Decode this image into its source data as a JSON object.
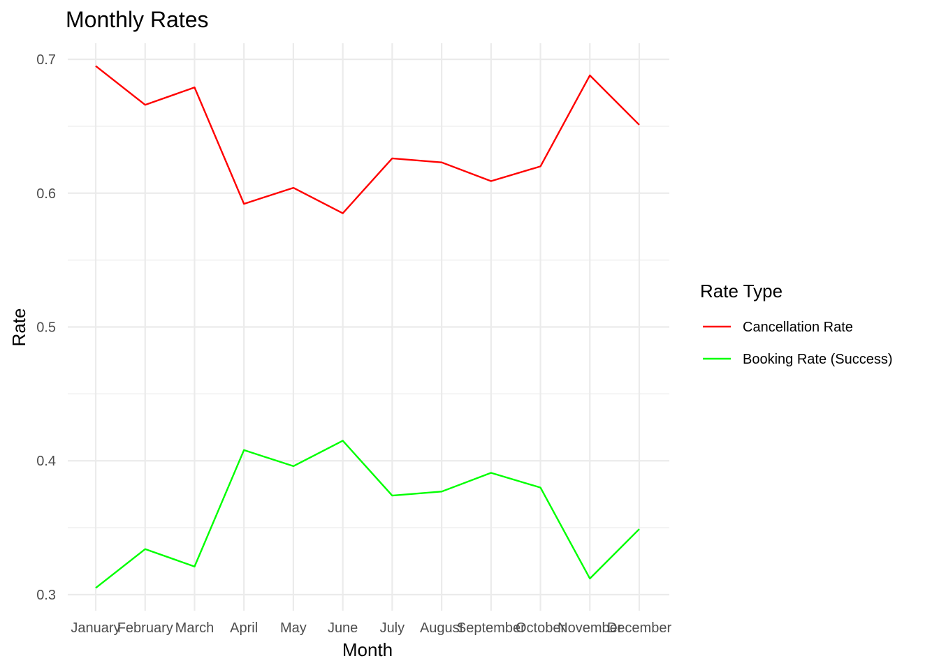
{
  "chart_data": {
    "type": "line",
    "title": "Monthly Rates",
    "xlabel": "Month",
    "ylabel": "Rate",
    "categories": [
      "January",
      "February",
      "March",
      "April",
      "May",
      "June",
      "July",
      "August",
      "September",
      "October",
      "November",
      "December"
    ],
    "ylim": [
      0.288,
      0.712
    ],
    "yticks": [
      0.3,
      0.4,
      0.5,
      0.6,
      0.7
    ],
    "ytick_labels": [
      "0.3",
      "0.4",
      "0.5",
      "0.6",
      "0.7"
    ],
    "grid": true,
    "legend": {
      "title": "Rate Type",
      "placement": "right"
    },
    "series": [
      {
        "name": "Cancellation Rate",
        "color": "#ff0000",
        "values": [
          0.695,
          0.666,
          0.679,
          0.592,
          0.604,
          0.585,
          0.626,
          0.623,
          0.609,
          0.62,
          0.688,
          0.651
        ]
      },
      {
        "name": "Booking Rate (Success)",
        "color": "#00ff00",
        "values": [
          0.305,
          0.334,
          0.321,
          0.408,
          0.396,
          0.415,
          0.374,
          0.377,
          0.391,
          0.38,
          0.312,
          0.349
        ]
      }
    ]
  }
}
